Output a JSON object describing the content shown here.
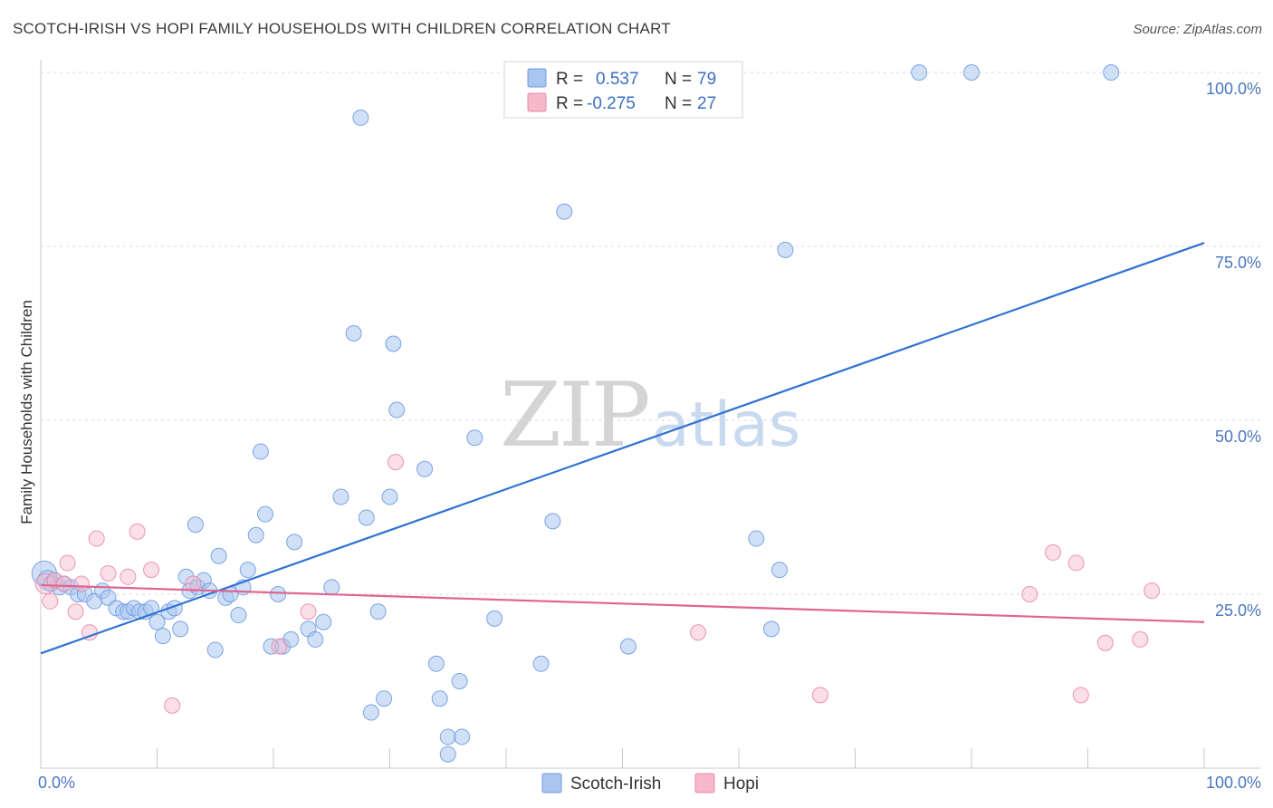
{
  "title": "SCOTCH-IRISH VS HOPI FAMILY HOUSEHOLDS WITH CHILDREN CORRELATION CHART",
  "source": "Source: ZipAtlas.com",
  "watermark": {
    "zip": "ZIP",
    "atlas": "atlas"
  },
  "colors": {
    "blue_fill": "#a9c6f0",
    "blue_stroke": "#6f9be0",
    "blue_line": "#2f72d2",
    "pink_fill": "#f6b8cb",
    "pink_stroke": "#e88aa8",
    "pink_line": "#e06592",
    "grid": "#d8d8d8",
    "tick_text": "#4a76c0"
  },
  "legend": {
    "r_label": "R =",
    "n_label": "N =",
    "rows": [
      {
        "r": "0.537",
        "n": "79"
      },
      {
        "r": "-0.275",
        "n": "27"
      }
    ]
  },
  "chart_data": {
    "type": "scatter",
    "title": "SCOTCH-IRISH VS HOPI FAMILY HOUSEHOLDS WITH CHILDREN CORRELATION CHART",
    "xlabel": "",
    "ylabel": "Family Households with Children",
    "xlim": [
      0,
      100
    ],
    "ylim": [
      0,
      100
    ],
    "x_tick_labels": [
      "0.0%",
      "100.0%"
    ],
    "y_ticks": [
      25,
      50,
      75,
      100
    ],
    "y_tick_labels": [
      "25.0%",
      "50.0%",
      "75.0%",
      "100.0%"
    ],
    "grid": "horizontal dashed",
    "legend_position": "top-center",
    "series": [
      {
        "name": "Scotch-Irish",
        "color": "#a9c6f0",
        "r": 0.537,
        "n": 79,
        "trend": {
          "x": [
            0,
            100
          ],
          "y": [
            16.5,
            75.5
          ]
        },
        "points": [
          [
            0.3,
            28,
            1.6
          ],
          [
            0.6,
            27,
            1.3
          ],
          [
            0.9,
            26.5,
            1
          ],
          [
            1.2,
            27,
            1
          ],
          [
            1.6,
            26,
            1
          ],
          [
            2,
            26.5,
            1
          ],
          [
            2.6,
            26,
            1
          ],
          [
            3.2,
            25,
            1
          ],
          [
            3.8,
            25,
            1
          ],
          [
            4.6,
            24,
            1
          ],
          [
            5.3,
            25.5,
            1
          ],
          [
            5.8,
            24.5,
            1
          ],
          [
            6.5,
            23,
            1
          ],
          [
            7.1,
            22.5,
            1
          ],
          [
            7.5,
            22.5,
            1
          ],
          [
            8,
            23,
            1
          ],
          [
            8.5,
            22.5,
            1
          ],
          [
            9,
            22.5,
            1
          ],
          [
            9.5,
            23,
            1
          ],
          [
            10,
            21,
            1
          ],
          [
            10.5,
            19,
            1
          ],
          [
            11,
            22.5,
            1
          ],
          [
            11.5,
            23,
            1
          ],
          [
            12,
            20,
            1
          ],
          [
            12.5,
            27.5,
            1
          ],
          [
            12.8,
            25.5,
            1
          ],
          [
            13.5,
            26,
            1
          ],
          [
            13.3,
            35,
            1
          ],
          [
            14,
            27,
            1
          ],
          [
            14.5,
            25.5,
            1
          ],
          [
            15,
            17,
            1
          ],
          [
            15.3,
            30.5,
            1
          ],
          [
            15.9,
            24.5,
            1
          ],
          [
            16.3,
            25,
            1
          ],
          [
            17,
            22,
            1
          ],
          [
            17.4,
            26,
            1
          ],
          [
            17.8,
            28.5,
            1
          ],
          [
            18.5,
            33.5,
            1
          ],
          [
            18.9,
            45.5,
            1
          ],
          [
            19.3,
            36.5,
            1
          ],
          [
            19.8,
            17.5,
            1
          ],
          [
            20.4,
            25,
            1
          ],
          [
            20.8,
            17.5,
            1
          ],
          [
            21.5,
            18.5,
            1
          ],
          [
            21.8,
            32.5,
            1
          ],
          [
            23,
            20,
            1
          ],
          [
            23.6,
            18.5,
            1
          ],
          [
            24.3,
            21,
            1
          ],
          [
            25,
            26,
            1
          ],
          [
            25.8,
            39,
            1
          ],
          [
            26.9,
            62.5,
            1
          ],
          [
            27.5,
            93.5,
            1
          ],
          [
            28,
            36,
            1
          ],
          [
            28.4,
            8,
            1
          ],
          [
            29,
            22.5,
            1
          ],
          [
            29.5,
            10,
            1
          ],
          [
            30,
            39,
            1
          ],
          [
            30.3,
            61,
            1
          ],
          [
            30.6,
            51.5,
            1
          ],
          [
            33,
            43,
            1
          ],
          [
            34,
            15,
            1
          ],
          [
            34.3,
            10,
            1
          ],
          [
            35,
            4.5,
            1
          ],
          [
            35,
            2,
            1
          ],
          [
            36,
            12.5,
            1
          ],
          [
            36.2,
            4.5,
            1
          ],
          [
            37.3,
            47.5,
            1
          ],
          [
            39,
            21.5,
            1
          ],
          [
            43,
            15,
            1
          ],
          [
            44,
            35.5,
            1
          ],
          [
            45,
            80,
            1
          ],
          [
            50.5,
            17.5,
            1
          ],
          [
            61.5,
            33,
            1
          ],
          [
            62.8,
            20,
            1
          ],
          [
            63.5,
            28.5,
            1
          ],
          [
            64,
            74.5,
            1
          ],
          [
            75.5,
            100,
            1
          ],
          [
            80,
            100,
            1
          ],
          [
            92,
            100,
            1
          ]
        ]
      },
      {
        "name": "Hopi",
        "color": "#f6b8cb",
        "r": -0.275,
        "n": 27,
        "trend": {
          "x": [
            0,
            100
          ],
          "y": [
            26.3,
            21.0
          ]
        },
        "points": [
          [
            0.4,
            26.5,
            1.3
          ],
          [
            0.8,
            24,
            1
          ],
          [
            1.2,
            27,
            1
          ],
          [
            2,
            26.5,
            1
          ],
          [
            2.3,
            29.5,
            1
          ],
          [
            3,
            22.5,
            1
          ],
          [
            3.5,
            26.5,
            1
          ],
          [
            4.2,
            19.5,
            1
          ],
          [
            4.8,
            33,
            1
          ],
          [
            5.8,
            28,
            1
          ],
          [
            7.5,
            27.5,
            1
          ],
          [
            8.3,
            34,
            1
          ],
          [
            9.5,
            28.5,
            1
          ],
          [
            11.3,
            9,
            1
          ],
          [
            13.1,
            26.5,
            1
          ],
          [
            20.5,
            17.5,
            1
          ],
          [
            23,
            22.5,
            1
          ],
          [
            30.5,
            44,
            1
          ],
          [
            56.5,
            19.5,
            1
          ],
          [
            67,
            10.5,
            1
          ],
          [
            85,
            25,
            1
          ],
          [
            87,
            31,
            1
          ],
          [
            89,
            29.5,
            1
          ],
          [
            89.4,
            10.5,
            1
          ],
          [
            91.5,
            18,
            1
          ],
          [
            94.5,
            18.5,
            1
          ],
          [
            95.5,
            25.5,
            1
          ]
        ]
      }
    ]
  }
}
